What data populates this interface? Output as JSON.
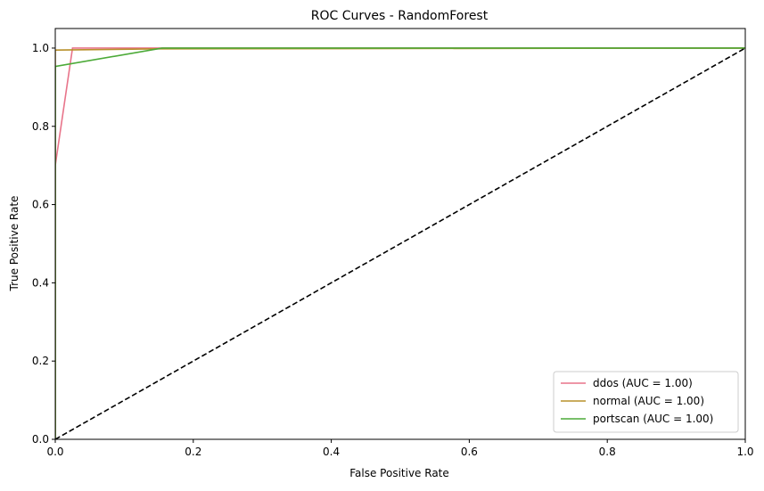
{
  "chart_data": {
    "type": "line",
    "title": "ROC Curves - RandomForest",
    "xlabel": "False Positive Rate",
    "ylabel": "True Positive Rate",
    "xlim": [
      0.0,
      1.0
    ],
    "ylim": [
      0.0,
      1.05
    ],
    "xticks": [
      0.0,
      0.2,
      0.4,
      0.6,
      0.8,
      1.0
    ],
    "yticks": [
      0.0,
      0.2,
      0.4,
      0.6,
      0.8,
      1.0
    ],
    "xtick_labels": [
      "0.0",
      "0.2",
      "0.4",
      "0.6",
      "0.8",
      "1.0"
    ],
    "ytick_labels": [
      "0.0",
      "0.2",
      "0.4",
      "0.6",
      "0.8",
      "1.0"
    ],
    "legend_position": "lower-right",
    "series": [
      {
        "name": "ddos (AUC = 1.00)",
        "color": "#e8748a",
        "x": [
          0.0,
          0.0,
          0.025,
          0.03,
          1.0
        ],
        "y": [
          0.0,
          0.7,
          1.0,
          1.0,
          1.0
        ]
      },
      {
        "name": "normal (AUC = 1.00)",
        "color": "#b8902a",
        "x": [
          0.0,
          0.0,
          0.15,
          1.0
        ],
        "y": [
          0.0,
          0.995,
          0.998,
          1.0
        ]
      },
      {
        "name": "portscan (AUC = 1.00)",
        "color": "#4caa38",
        "x": [
          0.0,
          0.0,
          0.155,
          1.0
        ],
        "y": [
          0.0,
          0.953,
          1.0,
          1.0
        ]
      }
    ],
    "reference_line": {
      "x": [
        0.0,
        1.0
      ],
      "y": [
        0.0,
        1.0
      ],
      "color": "#000000",
      "style": "dashed"
    }
  }
}
